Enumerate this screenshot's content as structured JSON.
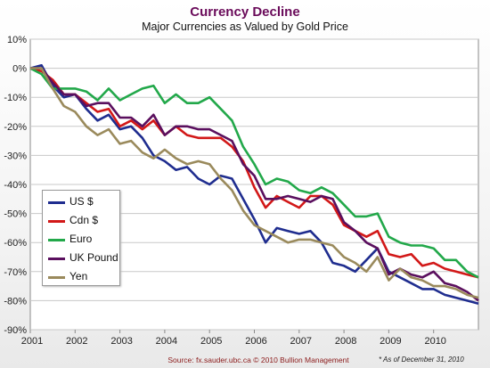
{
  "title": "Currency Decline",
  "subtitle": "Major Currencies as Valued by Gold Price",
  "source": "Source: fx.sauder.ubc.ca © 2010 Bullion Management",
  "as_of": "* As of December 31, 2010",
  "chart_data": {
    "type": "line",
    "title": "Currency Decline",
    "subtitle": "Major Currencies as Valued by Gold Price",
    "xlabel": "",
    "ylabel": "",
    "xlim": [
      2001,
      2011
    ],
    "ylim": [
      -90,
      10
    ],
    "y_ticks": [
      "10%",
      "0%",
      "-10%",
      "-20%",
      "-30%",
      "-40%",
      "-50%",
      "-60%",
      "-70%",
      "-80%",
      "-90%"
    ],
    "x_ticks": [
      "2001",
      "2002",
      "2003",
      "2004",
      "2005",
      "2006",
      "2007",
      "2008",
      "2009",
      "2010"
    ],
    "grid": true,
    "legend_position": "lower-left",
    "x": [
      2001.0,
      2001.25,
      2001.5,
      2001.75,
      2002.0,
      2002.25,
      2002.5,
      2002.75,
      2003.0,
      2003.25,
      2003.5,
      2003.75,
      2004.0,
      2004.25,
      2004.5,
      2004.75,
      2005.0,
      2005.25,
      2005.5,
      2005.75,
      2006.0,
      2006.25,
      2006.5,
      2006.75,
      2007.0,
      2007.25,
      2007.5,
      2007.75,
      2008.0,
      2008.25,
      2008.5,
      2008.75,
      2009.0,
      2009.25,
      2009.5,
      2009.75,
      2010.0,
      2010.25,
      2010.5,
      2010.75,
      2011.0
    ],
    "series": [
      {
        "name": "US $",
        "color": "#1f2d8f",
        "values": [
          0,
          1,
          -6,
          -10,
          -9,
          -14,
          -18,
          -16,
          -21,
          -20,
          -24,
          -30,
          -32,
          -35,
          -34,
          -38,
          -40,
          -37,
          -38,
          -45,
          -52,
          -60,
          -55,
          -56,
          -57,
          -56,
          -60,
          -67,
          -68,
          -70,
          -66,
          -62,
          -70,
          -72,
          -74,
          -76,
          -76,
          -78,
          -79,
          -80,
          -81
        ]
      },
      {
        "name": "Cdn $",
        "color": "#d21818",
        "values": [
          0,
          -1,
          -4,
          -9,
          -9,
          -12,
          -15,
          -14,
          -20,
          -18,
          -21,
          -18,
          -23,
          -20,
          -23,
          -24,
          -24,
          -24,
          -27,
          -32,
          -41,
          -48,
          -44,
          -46,
          -48,
          -44,
          -44,
          -47,
          -54,
          -56,
          -58,
          -56,
          -64,
          -65,
          -64,
          -68,
          -67,
          -69,
          -70,
          -71,
          -72
        ]
      },
      {
        "name": "Euro",
        "color": "#22a84a",
        "values": [
          0,
          -2,
          -7,
          -7,
          -7,
          -8,
          -11,
          -7,
          -11,
          -9,
          -7,
          -6,
          -12,
          -9,
          -12,
          -12,
          -10,
          -14,
          -18,
          -27,
          -33,
          -40,
          -38,
          -39,
          -42,
          -43,
          -41,
          -43,
          -47,
          -51,
          -51,
          -50,
          -58,
          -60,
          -61,
          -61,
          -62,
          -66,
          -66,
          -70,
          -72
        ]
      },
      {
        "name": "UK Pound",
        "color": "#5a0f5e",
        "values": [
          0,
          0,
          -5,
          -9,
          -9,
          -13,
          -12,
          -12,
          -17,
          -17,
          -20,
          -16,
          -23,
          -20,
          -20,
          -21,
          -21,
          -23,
          -25,
          -33,
          -37,
          -45,
          -45,
          -44,
          -45,
          -46,
          -44,
          -45,
          -53,
          -56,
          -60,
          -62,
          -71,
          -69,
          -71,
          -72,
          -70,
          -74,
          -75,
          -77,
          -80
        ]
      },
      {
        "name": "Yen",
        "color": "#9a8a5c",
        "values": [
          0,
          0,
          -7,
          -13,
          -15,
          -20,
          -23,
          -21,
          -26,
          -25,
          -29,
          -31,
          -28,
          -31,
          -33,
          -32,
          -33,
          -38,
          -42,
          -49,
          -54,
          -56,
          -58,
          -60,
          -59,
          -59,
          -60,
          -61,
          -65,
          -67,
          -70,
          -65,
          -73,
          -69,
          -72,
          -73,
          -75,
          -75,
          -76,
          -78,
          -79
        ]
      }
    ]
  }
}
